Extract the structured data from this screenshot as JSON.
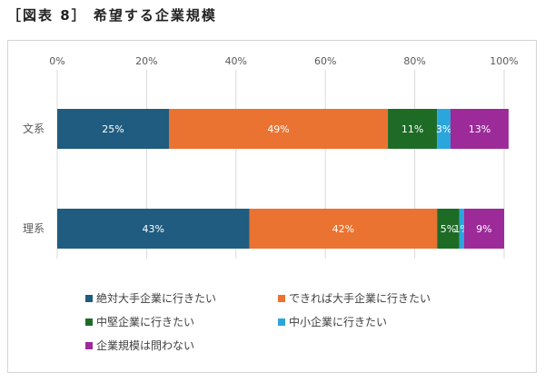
{
  "figure_title": "［図表 8］ 希望する企業規模",
  "chart_data": {
    "type": "bar",
    "orientation": "horizontal",
    "stacked": true,
    "title": "",
    "xlabel": "",
    "ylabel": "",
    "xlim": [
      0,
      100
    ],
    "x_ticks": [
      "0%",
      "20%",
      "40%",
      "60%",
      "80%",
      "100%"
    ],
    "x_axis_position": "top",
    "grid": true,
    "legend_position": "bottom",
    "categories": [
      "文系",
      "理系"
    ],
    "series": [
      {
        "name": "絶対大手企業に行きたい",
        "color": "#1f5c7f",
        "values": [
          25,
          43
        ],
        "labels": [
          "25%",
          "43%"
        ]
      },
      {
        "name": "できれば大手企業に行きたい",
        "color": "#ea7332",
        "values": [
          49,
          42
        ],
        "labels": [
          "49%",
          "42%"
        ]
      },
      {
        "name": "中堅企業に行きたい",
        "color": "#1e6b26",
        "values": [
          11,
          5
        ],
        "labels": [
          "11%",
          "5%"
        ]
      },
      {
        "name": "中小企業に行きたい",
        "color": "#2aa6dd",
        "values": [
          3,
          1
        ],
        "labels": [
          "3%",
          "1%"
        ]
      },
      {
        "name": "企業規模は問わない",
        "color": "#9c2a99",
        "values": [
          13,
          9
        ],
        "labels": [
          "13%",
          "9%"
        ]
      }
    ]
  }
}
